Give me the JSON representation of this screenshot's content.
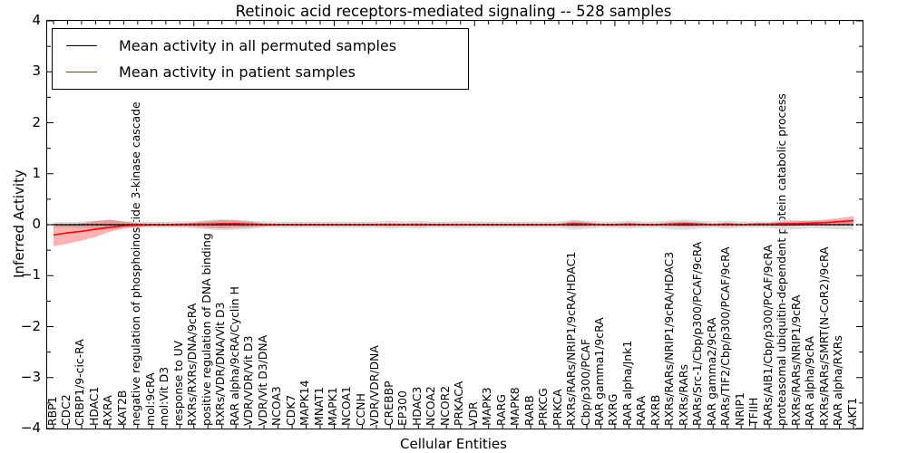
{
  "chart_data": {
    "type": "line",
    "title": "Retinoic acid receptors-mediated signaling -- 528 samples",
    "xlabel": "Cellular Entities",
    "ylabel": "Inferred Activity",
    "ylim": [
      -4,
      4
    ],
    "yticks": [
      -4,
      -3,
      -2,
      -1,
      0,
      1,
      2,
      3,
      4
    ],
    "grid": false,
    "legend_position": "upper left",
    "zero_line_style": "dotted",
    "categories": [
      "RBP1",
      "CDC2",
      "CRBP1/9-cic-RA",
      "HDAC1",
      "RXRA",
      "KAT2B",
      "negative regulation of phosphoinositide 3-kinase cascade",
      "mol:9cRA",
      "mol:Vit D3",
      "response to UV",
      "RXRs/RXRs/DNA/9cRA",
      "positive regulation of DNA binding",
      "RXRs/VDR/DNA/Vit D3",
      "RAR alpha/9cRA/Cyclin H",
      "VDR/VDR/Vit D3",
      "VDR/Vit D3/DNA",
      "NCOA3",
      "CDK7",
      "MAPK14",
      "MNAT1",
      "MAPK1",
      "NCOA1",
      "CCNH",
      "VDR/VDR/DNA",
      "CREBBP",
      "EP300",
      "HDAC3",
      "NCOA2",
      "NCOR2",
      "PRKACA",
      "VDR",
      "MAPK3",
      "RARG",
      "MAPK8",
      "RARB",
      "PRKCG",
      "PRKCA",
      "RXRs/RARs/NRIP1/9cRA/HDAC1",
      "Cbp/p300/PCAF",
      "RAR gamma1/9cRA",
      "RXRG",
      "RAR alpha/Jnk1",
      "RARA",
      "RXRB",
      "RXRs/RARs/NRIP1/9cRA/HDAC3",
      "RXRs/RARs",
      "RARs/Src-1/Cbp/p300/PCAF/9cRA",
      "RAR gamma2/9cRA",
      "RARs/TIF2/Cbp/p300/PCAF/9cRA",
      "NRIP1",
      "TFIIH",
      "RARs/AIB1/Cbp/p300/PCAF/9cRA",
      "proteasomal ubiquitin-dependent protein catabolic process",
      "RXRs/RARs/NRIP1/9cRA",
      "RAR alpha/9cRA",
      "RXRs/RARs/SMRT(N-CoR2)/9cRA",
      "RAR alpha/RXRs",
      "AKT1"
    ],
    "series": [
      {
        "name": "Mean activity in all permuted samples",
        "color": "#000000",
        "band_color": "#dddddd",
        "values": [
          0,
          0,
          0,
          0,
          0,
          0,
          0,
          0,
          0,
          0,
          0,
          0,
          0,
          0,
          0,
          0,
          0,
          0,
          0,
          0,
          0,
          0,
          0,
          0,
          0,
          0,
          0,
          0,
          0,
          0,
          0,
          0,
          0,
          0,
          0,
          0,
          0,
          0,
          0,
          0,
          0,
          0,
          0,
          0,
          0,
          0,
          0,
          0,
          0,
          0,
          0,
          0,
          0,
          0,
          0,
          0,
          0,
          0
        ],
        "band_half_width": [
          0.05,
          0.05,
          0.06,
          0.08,
          0.09,
          0.07,
          0.06,
          0.06,
          0.06,
          0.06,
          0.07,
          0.09,
          0.11,
          0.1,
          0.08,
          0.06,
          0.06,
          0.06,
          0.06,
          0.06,
          0.06,
          0.06,
          0.06,
          0.06,
          0.08,
          0.06,
          0.08,
          0.06,
          0.06,
          0.07,
          0.06,
          0.06,
          0.06,
          0.06,
          0.06,
          0.06,
          0.06,
          0.1,
          0.08,
          0.06,
          0.06,
          0.08,
          0.06,
          0.06,
          0.09,
          0.1,
          0.08,
          0.06,
          0.08,
          0.06,
          0.06,
          0.06,
          0.1,
          0.09,
          0.07,
          0.08,
          0.09,
          0.1
        ]
      },
      {
        "name": "Mean activity in patient samples",
        "color": "#ff0000",
        "band_color": "rgba(255,0,0,0.30)",
        "values": [
          -0.2,
          -0.16,
          -0.13,
          -0.09,
          -0.05,
          -0.02,
          -0.01,
          0,
          0,
          0,
          0.01,
          0.01,
          0.02,
          0.02,
          0.01,
          0,
          0,
          0,
          0,
          0,
          0,
          0,
          0,
          0,
          0,
          0,
          0,
          0,
          0,
          0,
          0,
          0,
          0,
          0,
          0,
          0,
          0,
          0.02,
          0.01,
          0,
          0,
          0.01,
          0,
          0,
          0.01,
          0.02,
          0.01,
          0,
          0.01,
          0,
          0.01,
          0.01,
          0.02,
          0.02,
          0.03,
          0.04,
          0.06,
          0.08
        ],
        "band_lo": [
          -0.42,
          -0.37,
          -0.31,
          -0.24,
          -0.14,
          -0.07,
          -0.04,
          -0.03,
          -0.03,
          -0.03,
          -0.04,
          -0.06,
          -0.07,
          -0.06,
          -0.05,
          -0.03,
          -0.02,
          -0.02,
          -0.02,
          -0.02,
          -0.02,
          -0.02,
          -0.02,
          -0.02,
          -0.03,
          -0.02,
          -0.03,
          -0.02,
          -0.02,
          -0.02,
          -0.02,
          -0.02,
          -0.02,
          -0.02,
          -0.02,
          -0.02,
          -0.02,
          -0.04,
          -0.03,
          -0.02,
          -0.02,
          -0.03,
          -0.02,
          -0.02,
          -0.03,
          -0.04,
          -0.03,
          -0.02,
          -0.03,
          -0.02,
          -0.02,
          -0.02,
          -0.03,
          -0.02,
          -0.01,
          0.0,
          0.01,
          0.02
        ],
        "band_hi": [
          -0.02,
          0.0,
          0.03,
          0.07,
          0.1,
          0.06,
          0.03,
          0.02,
          0.02,
          0.03,
          0.04,
          0.07,
          0.09,
          0.08,
          0.06,
          0.03,
          0.02,
          0.02,
          0.02,
          0.02,
          0.02,
          0.02,
          0.02,
          0.02,
          0.03,
          0.02,
          0.03,
          0.02,
          0.02,
          0.02,
          0.02,
          0.02,
          0.02,
          0.02,
          0.02,
          0.02,
          0.02,
          0.07,
          0.05,
          0.02,
          0.02,
          0.04,
          0.02,
          0.02,
          0.05,
          0.06,
          0.04,
          0.02,
          0.04,
          0.02,
          0.03,
          0.03,
          0.06,
          0.07,
          0.08,
          0.1,
          0.13,
          0.17
        ]
      }
    ]
  }
}
